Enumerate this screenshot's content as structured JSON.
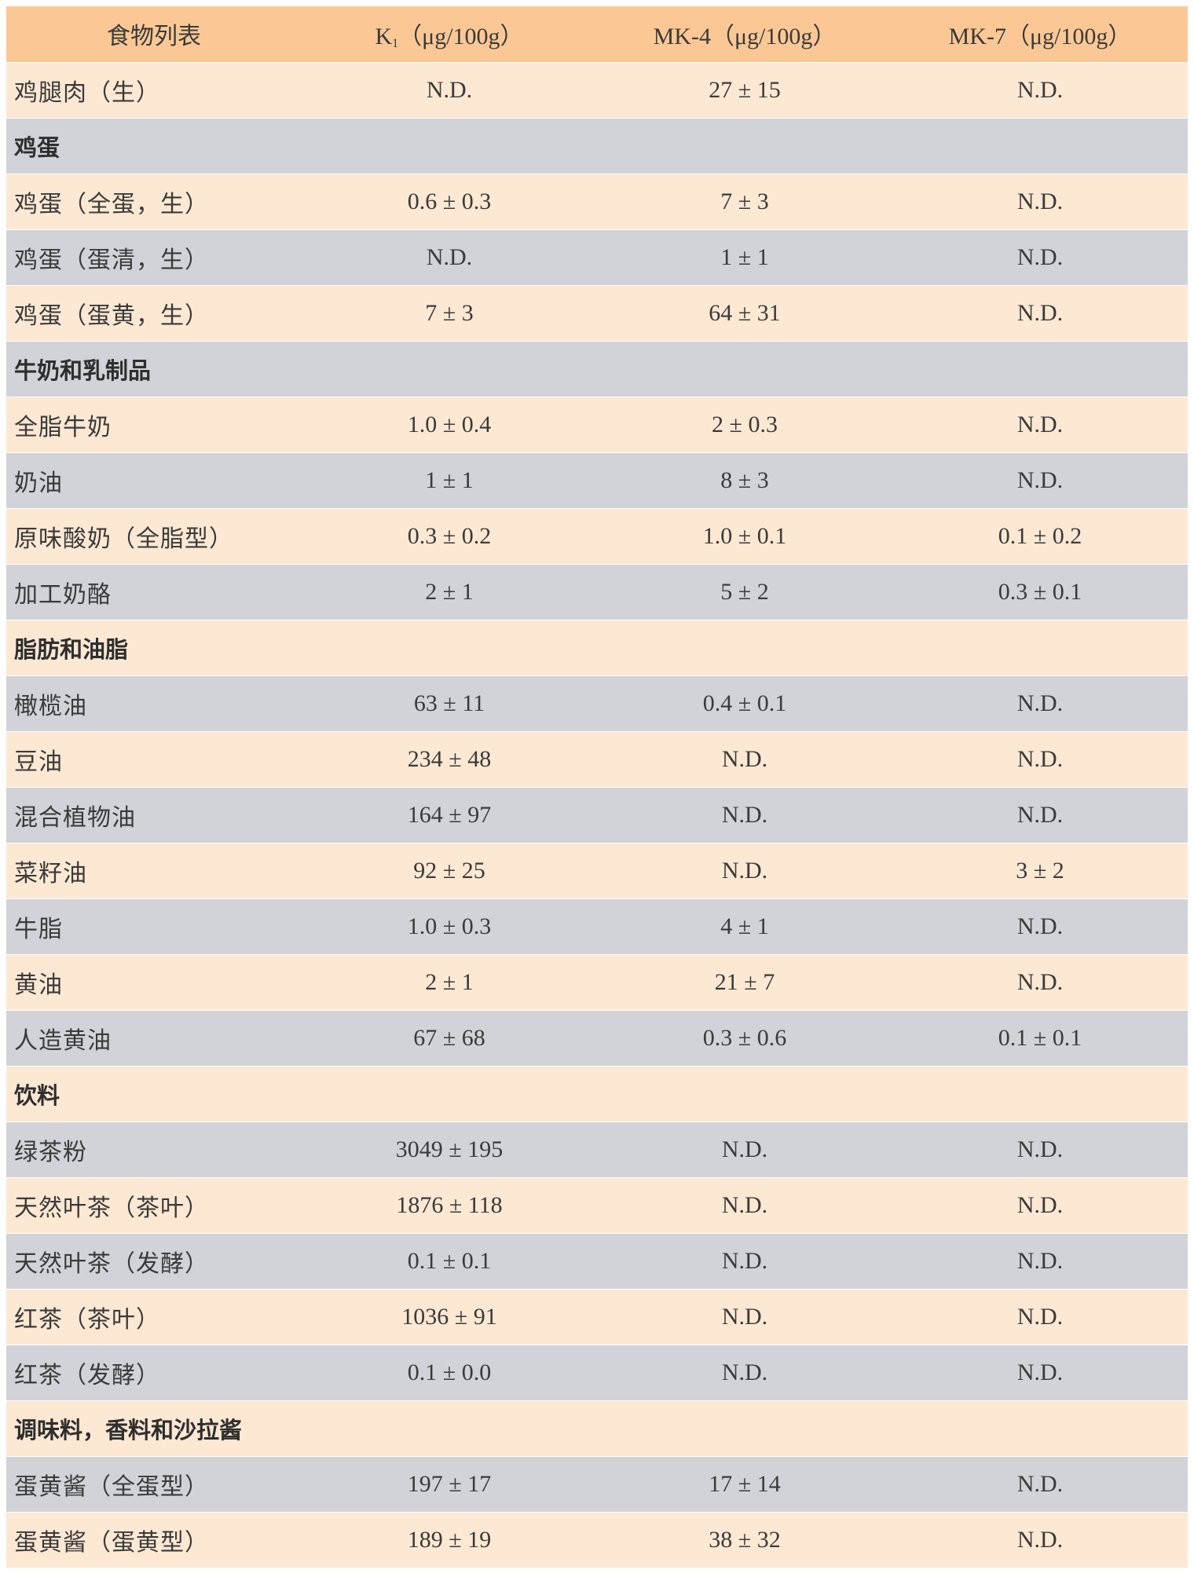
{
  "table": {
    "header": {
      "col0": "食物列表",
      "col1_main": "K",
      "col1_sub": "1",
      "col1_unit": "（μg/100g）",
      "col2": "MK-4（μg/100g）",
      "col3": "MK-7（μg/100g）"
    },
    "rows": [
      {
        "type": "item",
        "shade": "peach",
        "name": "鸡腿肉（生）",
        "k1": "N.D.",
        "mk4": "27 ± 15",
        "mk7": "N.D."
      },
      {
        "type": "section",
        "shade": "gray",
        "name": "鸡蛋"
      },
      {
        "type": "item",
        "shade": "peach",
        "name": "鸡蛋（全蛋，生）",
        "k1": "0.6 ± 0.3",
        "mk4": "7 ± 3",
        "mk7": "N.D."
      },
      {
        "type": "item",
        "shade": "gray",
        "name": "鸡蛋（蛋清，生）",
        "k1": "N.D.",
        "mk4": "1 ± 1",
        "mk7": "N.D."
      },
      {
        "type": "item",
        "shade": "peach",
        "name": "鸡蛋（蛋黄，生）",
        "k1": "7 ± 3",
        "mk4": "64 ± 31",
        "mk7": "N.D."
      },
      {
        "type": "section",
        "shade": "gray",
        "name": "牛奶和乳制品"
      },
      {
        "type": "item",
        "shade": "peach",
        "name": "全脂牛奶",
        "k1": "1.0 ± 0.4",
        "mk4": "2 ± 0.3",
        "mk7": "N.D."
      },
      {
        "type": "item",
        "shade": "gray",
        "name": "奶油",
        "k1": "1 ± 1",
        "mk4": "8 ± 3",
        "mk7": "N.D."
      },
      {
        "type": "item",
        "shade": "peach",
        "name": "原味酸奶（全脂型）",
        "k1": "0.3 ± 0.2",
        "mk4": "1.0 ± 0.1",
        "mk7": "0.1 ± 0.2"
      },
      {
        "type": "item",
        "shade": "gray",
        "name": "加工奶酪",
        "k1": "2 ± 1",
        "mk4": "5 ± 2",
        "mk7": "0.3 ± 0.1"
      },
      {
        "type": "section",
        "shade": "peach",
        "name": "脂肪和油脂"
      },
      {
        "type": "item",
        "shade": "gray",
        "name": "橄榄油",
        "k1": "63 ± 11",
        "mk4": "0.4 ± 0.1",
        "mk7": "N.D."
      },
      {
        "type": "item",
        "shade": "peach",
        "name": "豆油",
        "k1": "234 ± 48",
        "mk4": "N.D.",
        "mk7": "N.D."
      },
      {
        "type": "item",
        "shade": "gray",
        "name": "混合植物油",
        "k1": "164 ± 97",
        "mk4": "N.D.",
        "mk7": "N.D."
      },
      {
        "type": "item",
        "shade": "peach",
        "name": "菜籽油",
        "k1": "92 ± 25",
        "mk4": "N.D.",
        "mk7": "3 ± 2"
      },
      {
        "type": "item",
        "shade": "gray",
        "name": "牛脂",
        "k1": "1.0 ± 0.3",
        "mk4": "4 ± 1",
        "mk7": "N.D."
      },
      {
        "type": "item",
        "shade": "peach",
        "name": "黄油",
        "k1": "2 ± 1",
        "mk4": "21 ± 7",
        "mk7": "N.D."
      },
      {
        "type": "item",
        "shade": "gray",
        "name": "人造黄油",
        "k1": "67 ± 68",
        "mk4": "0.3 ± 0.6",
        "mk7": "0.1 ± 0.1"
      },
      {
        "type": "section",
        "shade": "peach",
        "name": "饮料"
      },
      {
        "type": "item",
        "shade": "gray",
        "name": "绿茶粉",
        "k1": "3049 ± 195",
        "mk4": "N.D.",
        "mk7": "N.D."
      },
      {
        "type": "item",
        "shade": "peach",
        "name": "天然叶茶（茶叶）",
        "k1": "1876 ± 118",
        "mk4": "N.D.",
        "mk7": "N.D."
      },
      {
        "type": "item",
        "shade": "gray",
        "name": "天然叶茶（发酵）",
        "k1": "0.1 ± 0.1",
        "mk4": "N.D.",
        "mk7": "N.D."
      },
      {
        "type": "item",
        "shade": "peach",
        "name": "红茶（茶叶）",
        "k1": "1036 ± 91",
        "mk4": "N.D.",
        "mk7": "N.D."
      },
      {
        "type": "item",
        "shade": "gray",
        "name": "红茶（发酵）",
        "k1": "0.1 ± 0.0",
        "mk4": "N.D.",
        "mk7": "N.D."
      },
      {
        "type": "section",
        "shade": "peach",
        "name": "调味料，香料和沙拉酱"
      },
      {
        "type": "item",
        "shade": "gray",
        "name": "蛋黄酱（全蛋型）",
        "k1": "197 ± 17",
        "mk4": "17 ± 14",
        "mk7": "N.D."
      },
      {
        "type": "item",
        "shade": "peach",
        "name": "蛋黄酱（蛋黄型）",
        "k1": "189 ± 19",
        "mk4": "38 ± 32",
        "mk7": "N.D."
      }
    ]
  },
  "colors": {
    "header": "#fbc895",
    "peach_row": "#fde8d3",
    "gray_row": "#d1d3d8",
    "text": "#3a3a3a"
  }
}
